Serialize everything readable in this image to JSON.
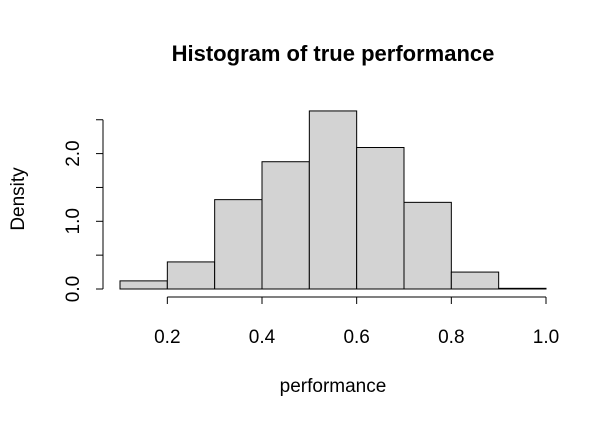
{
  "chart_data": {
    "type": "bar",
    "title": "Histogram of true performance",
    "xlabel": "performance",
    "ylabel": "Density",
    "bins": [
      {
        "start": 0.1,
        "end": 0.2,
        "density": 0.12
      },
      {
        "start": 0.2,
        "end": 0.3,
        "density": 0.4
      },
      {
        "start": 0.3,
        "end": 0.4,
        "density": 1.32
      },
      {
        "start": 0.4,
        "end": 0.5,
        "density": 1.88
      },
      {
        "start": 0.5,
        "end": 0.6,
        "density": 2.63
      },
      {
        "start": 0.6,
        "end": 0.7,
        "density": 2.09
      },
      {
        "start": 0.7,
        "end": 0.8,
        "density": 1.28
      },
      {
        "start": 0.8,
        "end": 0.9,
        "density": 0.25
      },
      {
        "start": 0.9,
        "end": 1.0,
        "density": 0.01
      }
    ],
    "xticks": [
      "0.2",
      "0.4",
      "0.6",
      "0.8",
      "1.0"
    ],
    "yticks": [
      "0.0",
      "1.0",
      "2.0"
    ],
    "xlim": [
      0.1,
      1.0
    ],
    "ylim": [
      0,
      2.5
    ],
    "grid": false,
    "fill_color": "#d3d3d3"
  }
}
